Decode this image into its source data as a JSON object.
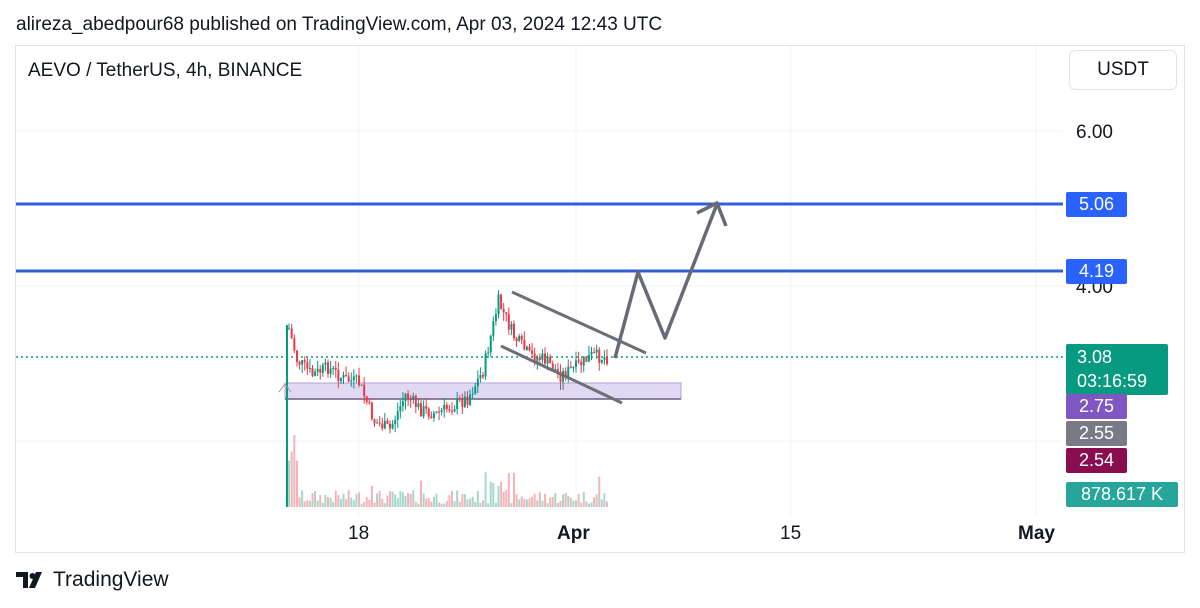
{
  "header": {
    "publish_line": "alireza_abedpour68 published on TradingView.com, Apr 03, 2024 12:43 UTC"
  },
  "symbol": {
    "title": "AEVO / TetherUS, 4h, BINANCE",
    "currency": "USDT"
  },
  "price_scale": {
    "tick_labels": [
      "6.00",
      "4.00"
    ],
    "tick_values": [
      6.0,
      4.0
    ]
  },
  "price_tags": {
    "level_top": {
      "label": "5.06",
      "color": "#2962ff"
    },
    "level_bottom": {
      "label": "4.19",
      "color": "#2962ff"
    },
    "last_price": {
      "label": "3.08",
      "countdown": "03:16:59",
      "color": "#089981"
    },
    "purple": {
      "label": "2.75",
      "color": "#7e57c2"
    },
    "gray": {
      "label": "2.55",
      "color": "#787b86"
    },
    "maroon": {
      "label": "2.54",
      "color": "#880e4f"
    },
    "volume": {
      "label": "878.617 K",
      "color": "#26a69a"
    }
  },
  "time_axis": {
    "labels": [
      "18",
      "Apr",
      "15",
      "May"
    ]
  },
  "footer": {
    "brand": "TradingView"
  },
  "chart_data": {
    "type": "candlestick",
    "symbol": "AEVO / TetherUS",
    "interval": "4h",
    "exchange": "BINANCE",
    "quote_currency": "USDT",
    "x_tick_labels": [
      "18",
      "Apr",
      "15",
      "May"
    ],
    "y_tick_labels": [
      "6.00",
      "4.00"
    ],
    "ylim": [
      1.6,
      6.8
    ],
    "horizontal_levels": [
      {
        "price": 5.06,
        "color": "#2962ff"
      },
      {
        "price": 4.19,
        "color": "#2962ff"
      }
    ],
    "last_price": 3.08,
    "support_zone": {
      "low": 2.55,
      "high": 2.75,
      "color": "#d1c4e9"
    },
    "descending_channel": {
      "upper": [
        {
          "date": "2024-03-27",
          "price": 3.9
        },
        {
          "date": "2024-04-05",
          "price": 3.1
        }
      ],
      "lower": [
        {
          "date": "2024-03-26",
          "price": 3.25
        },
        {
          "date": "2024-04-04",
          "price": 2.45
        }
      ]
    },
    "projected_path": [
      {
        "date": "2024-04-03",
        "price": 3.05
      },
      {
        "date": "2024-04-04",
        "price": 4.15
      },
      {
        "date": "2024-04-06",
        "price": 3.35
      },
      {
        "date": "2024-04-10",
        "price": 5.06
      }
    ],
    "price_path": [
      {
        "date": "2024-03-13",
        "price": 2.6
      },
      {
        "date": "2024-03-13",
        "price": 3.45
      },
      {
        "date": "2024-03-14",
        "price": 3.05
      },
      {
        "date": "2024-03-15",
        "price": 2.85
      },
      {
        "date": "2024-03-16",
        "price": 2.95
      },
      {
        "date": "2024-03-17",
        "price": 2.8
      },
      {
        "date": "2024-03-18",
        "price": 2.75
      },
      {
        "date": "2024-03-19",
        "price": 2.25
      },
      {
        "date": "2024-03-20",
        "price": 2.15
      },
      {
        "date": "2024-03-21",
        "price": 2.6
      },
      {
        "date": "2024-03-22",
        "price": 2.4
      },
      {
        "date": "2024-03-23",
        "price": 2.35
      },
      {
        "date": "2024-03-24",
        "price": 2.45
      },
      {
        "date": "2024-03-25",
        "price": 2.55
      },
      {
        "date": "2024-03-26",
        "price": 2.9
      },
      {
        "date": "2024-03-27",
        "price": 3.8
      },
      {
        "date": "2024-03-28",
        "price": 3.35
      },
      {
        "date": "2024-03-29",
        "price": 3.1
      },
      {
        "date": "2024-03-30",
        "price": 3.05
      },
      {
        "date": "2024-03-31",
        "price": 2.85
      },
      {
        "date": "2024-04-01",
        "price": 2.95
      },
      {
        "date": "2024-04-02",
        "price": 3.1
      },
      {
        "date": "2024-04-03",
        "price": 3.08
      }
    ]
  }
}
